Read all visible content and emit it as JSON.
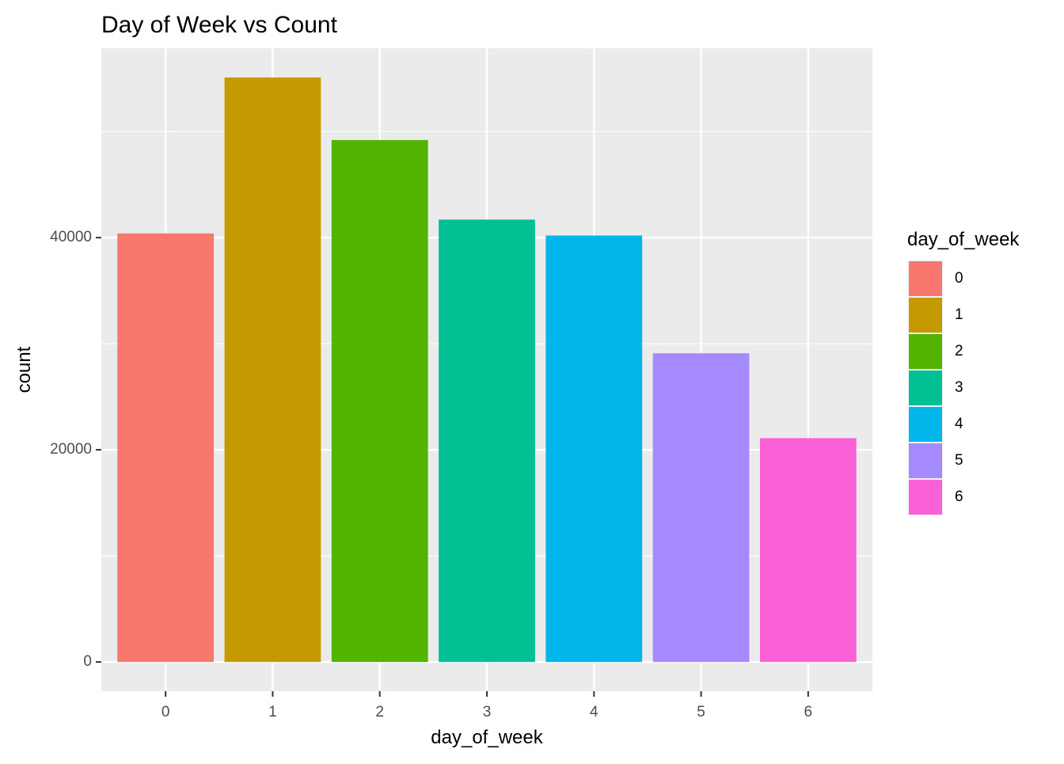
{
  "chart_data": {
    "type": "bar",
    "title": "Day of Week vs Count",
    "xlabel": "day_of_week",
    "ylabel": "count",
    "categories": [
      "0",
      "1",
      "2",
      "3",
      "4",
      "5",
      "6"
    ],
    "values": [
      40400,
      55100,
      49200,
      41700,
      40200,
      29100,
      21100
    ],
    "colors": [
      "#F8766D",
      "#C49A00",
      "#53B400",
      "#00C094",
      "#00B6EB",
      "#A58AFF",
      "#FB61D7"
    ],
    "y_ticks": [
      0,
      20000,
      40000
    ],
    "y_tick_labels": [
      "0",
      "20000",
      "40000"
    ],
    "ylim": [
      -2750,
      57850
    ],
    "grid": true,
    "panel_background": "#EBEBEB",
    "legend": {
      "title": "day_of_week",
      "position": "right",
      "entries": [
        "0",
        "1",
        "2",
        "3",
        "4",
        "5",
        "6"
      ]
    }
  }
}
